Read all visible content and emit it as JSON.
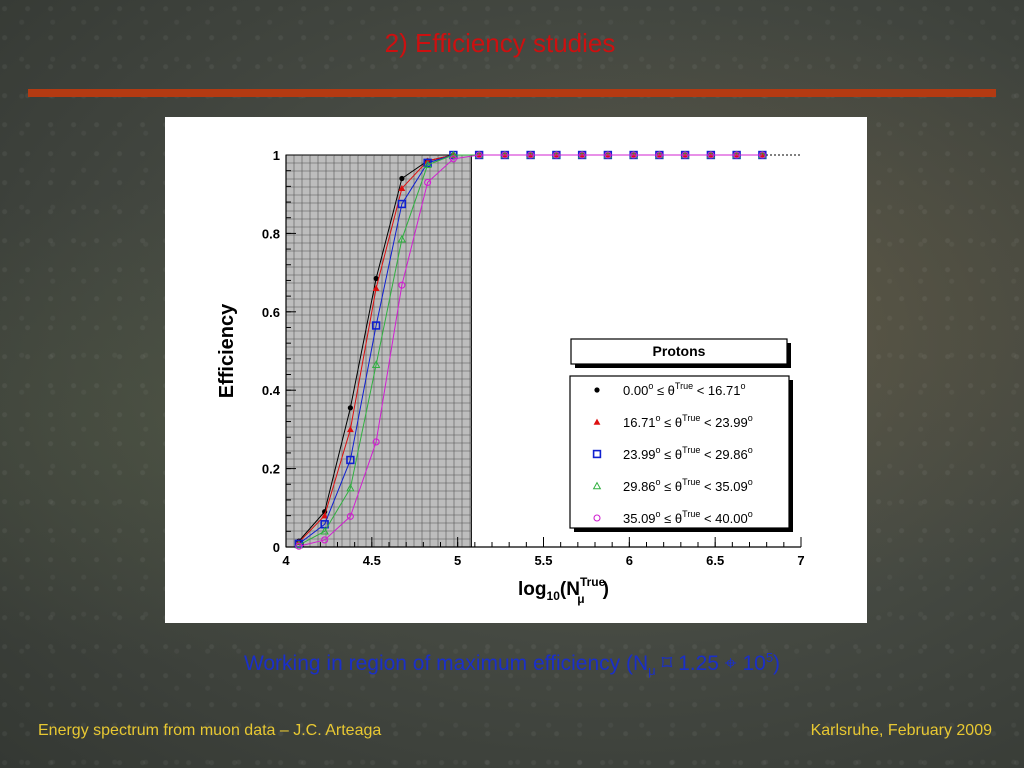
{
  "slide": {
    "title": "2) Efficiency studies",
    "caption": {
      "prefix": "Working in region of maximum efficiency (N",
      "sub": "μ",
      "middle": " ⌑ 1.25 ⌖ 10",
      "sup": "5",
      "suffix": ")"
    },
    "footer_left": "Energy spectrum from muon data – J.C. Arteaga",
    "footer_right": "Karlsruhe,  February 2009"
  },
  "colors": {
    "title": "#cc1010",
    "rule": "#b43a12",
    "caption": "#1a2fc8",
    "footer": "#e8c832"
  },
  "chart_data": {
    "type": "line",
    "xlabel": {
      "main": "log",
      "sub1": "10",
      "mid": "(N",
      "sup": "True",
      "sub2": "μ",
      "end": ")"
    },
    "ylabel": "Efficiency",
    "xlim": [
      4,
      7
    ],
    "ylim": [
      0,
      1
    ],
    "xticks": [
      "4",
      "4.5",
      "5",
      "5.5",
      "6",
      "6.5",
      "7"
    ],
    "yticks": [
      "0",
      "0.2",
      "0.4",
      "0.6",
      "0.8",
      "1"
    ],
    "shaded_region": [
      4,
      5.08
    ],
    "reference_line": 1,
    "legend_title": "Protons",
    "x": [
      4.075,
      4.225,
      4.375,
      4.525,
      4.675,
      4.825,
      4.975,
      5.125,
      5.275,
      5.425,
      5.575,
      5.725,
      5.875,
      6.025,
      6.175,
      6.325,
      6.475,
      6.625,
      6.775
    ],
    "series": [
      {
        "name_lo": "0.00",
        "name_hi": "16.71",
        "marker": "circle-filled",
        "color": "#000000",
        "values": [
          0.015,
          0.09,
          0.355,
          0.685,
          0.94,
          0.985,
          1,
          1,
          1,
          1,
          1,
          1,
          1,
          1,
          1,
          1,
          1,
          1,
          1
        ]
      },
      {
        "name_lo": "16.71",
        "name_hi": "23.99",
        "marker": "triangle-filled",
        "color": "#dd1010",
        "values": [
          0.012,
          0.08,
          0.3,
          0.66,
          0.915,
          0.985,
          1,
          1,
          1,
          1,
          1,
          1,
          1,
          1,
          1,
          1,
          1,
          1,
          1
        ]
      },
      {
        "name_lo": "23.99",
        "name_hi": "29.86",
        "marker": "square-open",
        "color": "#1020d0",
        "values": [
          0.008,
          0.058,
          0.222,
          0.565,
          0.875,
          0.98,
          1,
          1,
          1,
          1,
          1,
          1,
          1,
          1,
          1,
          1,
          1,
          1,
          1
        ]
      },
      {
        "name_lo": "29.86",
        "name_hi": "35.09",
        "marker": "triangle-open",
        "color": "#30b040",
        "values": [
          0.005,
          0.04,
          0.15,
          0.465,
          0.785,
          0.975,
          1,
          1,
          1,
          1,
          1,
          1,
          1,
          1,
          1,
          1,
          1,
          1,
          1
        ]
      },
      {
        "name_lo": "35.09",
        "name_hi": "40.00",
        "marker": "circle-open",
        "color": "#d020d0",
        "values": [
          0.002,
          0.018,
          0.078,
          0.268,
          0.668,
          0.93,
          0.99,
          1,
          1,
          1,
          1,
          1,
          1,
          1,
          1,
          1,
          1,
          1,
          1
        ]
      }
    ],
    "legend_theta_sup": "True"
  }
}
